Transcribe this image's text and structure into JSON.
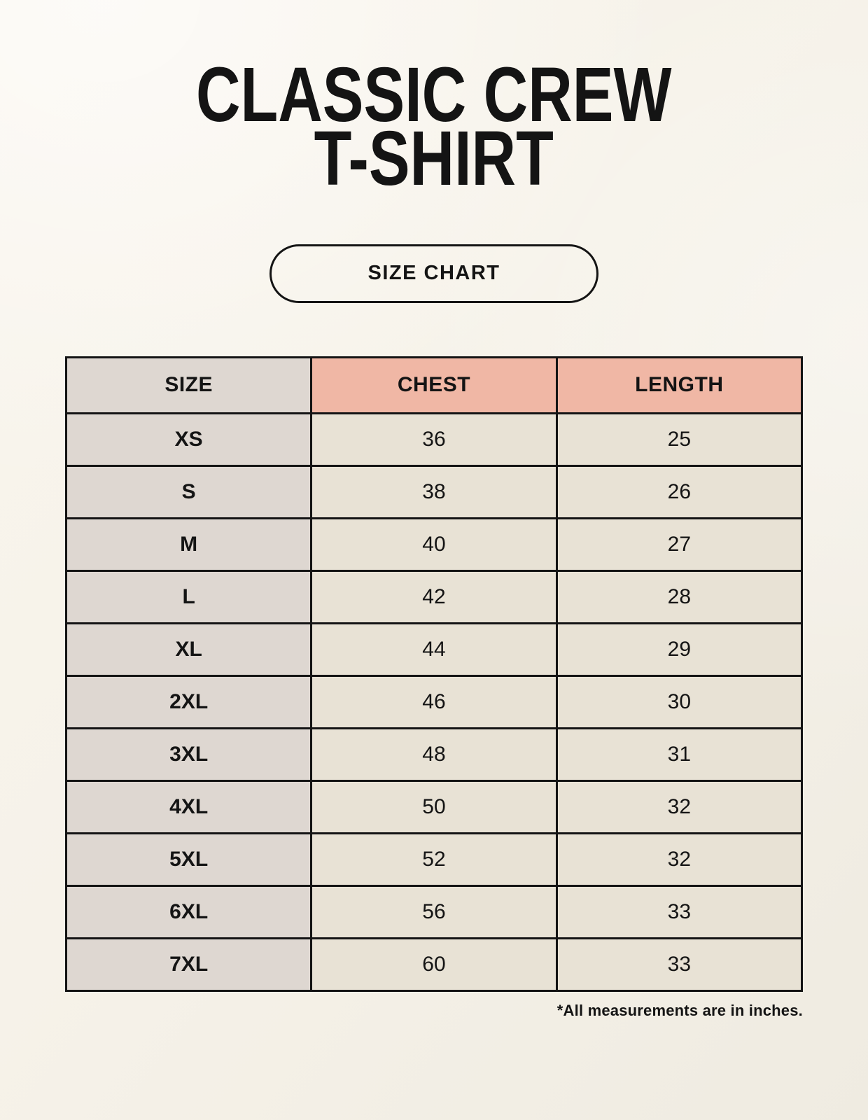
{
  "page": {
    "title_line1": "CLASSIC CREW",
    "title_line2": "T-SHIRT",
    "size_chart_button": "SIZE CHART",
    "footnote": "*All measurements are in inches."
  },
  "colors": {
    "page_bg": "#f6f2e9",
    "size_col_bg": "#ded7d1",
    "measure_header_bg": "#f0b7a5",
    "cell_bg": "#e8e2d5",
    "border": "#141414",
    "text": "#141414"
  },
  "table": {
    "columns": [
      "SIZE",
      "CHEST",
      "LENGTH"
    ],
    "rows": [
      {
        "size": "XS",
        "chest": "36",
        "length": "25"
      },
      {
        "size": "S",
        "chest": "38",
        "length": "26"
      },
      {
        "size": "M",
        "chest": "40",
        "length": "27"
      },
      {
        "size": "L",
        "chest": "42",
        "length": "28"
      },
      {
        "size": "XL",
        "chest": "44",
        "length": "29"
      },
      {
        "size": "2XL",
        "chest": "46",
        "length": "30"
      },
      {
        "size": "3XL",
        "chest": "48",
        "length": "31"
      },
      {
        "size": "4XL",
        "chest": "50",
        "length": "32"
      },
      {
        "size": "5XL",
        "chest": "52",
        "length": "32"
      },
      {
        "size": "6XL",
        "chest": "56",
        "length": "33"
      },
      {
        "size": "7XL",
        "chest": "60",
        "length": "33"
      }
    ]
  }
}
